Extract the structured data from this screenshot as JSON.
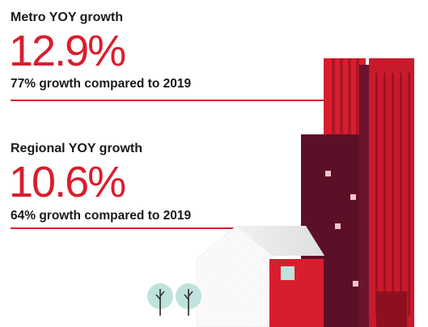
{
  "stats": [
    {
      "label": "Metro YOY growth",
      "value": "12.9%",
      "caption": "77% growth compared to 2019"
    },
    {
      "label": "Regional YOY growth",
      "value": "10.6%",
      "caption": "64% growth compared to 2019"
    }
  ],
  "colors": {
    "accent": "#d81e2e",
    "dark_maroon": "#5c1027",
    "text": "#1a1a1a",
    "tree": "#bfe3dc"
  }
}
